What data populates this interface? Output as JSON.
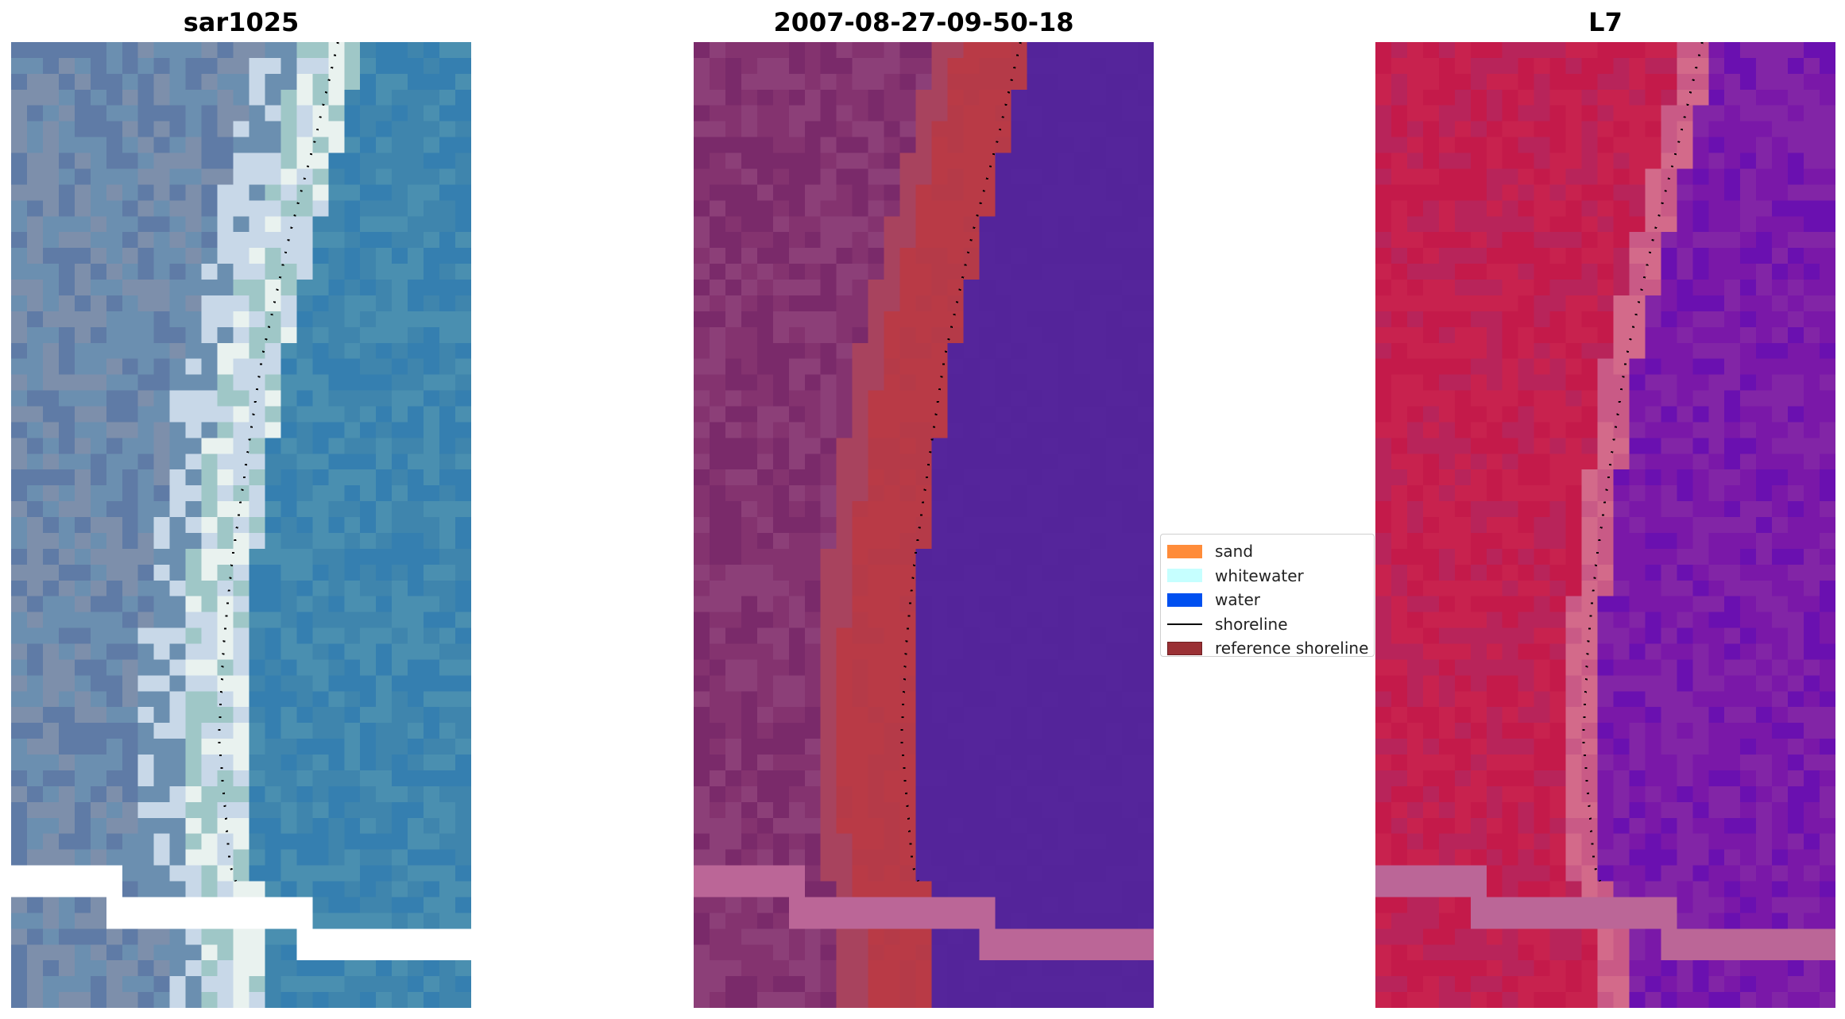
{
  "panels": [
    {
      "title": "sar1025",
      "palette": {
        "land_a": "#5f7ba6",
        "land_b": "#7d8fab",
        "land_c": "#6b8fb0",
        "surf_a": "#e9f2ef",
        "surf_b": "#c8d8e8",
        "surf_c": "#9fc7c7",
        "water_a": "#3f85ad",
        "water_b": "#357fb0",
        "water_c": "#4a8fb0",
        "nodata": "#ffffff"
      }
    },
    {
      "title": "2007-08-27-09-50-18",
      "palette": {
        "land_a": "#7a2a6a",
        "land_b": "#84336f",
        "land_c": "#8c3f78",
        "surf_a": "#b93a46",
        "surf_b": "#b53a48",
        "surf_c": "#a8435e",
        "water_a": "#54249a",
        "water_b": "#55259b",
        "water_c": "#5a2a9c",
        "nodata": "#bb6697"
      }
    },
    {
      "title": "L7",
      "palette": {
        "land_a": "#c41a4a",
        "land_b": "#c8224e",
        "land_c": "#b8245a",
        "surf_a": "#d36a8a",
        "surf_b": "#c95a86",
        "surf_c": "#a84c8f",
        "water_a": "#7a18a8",
        "water_b": "#8225a6",
        "water_c": "#6a10b0",
        "nodata": "#bb6697"
      }
    }
  ],
  "legend": {
    "items": [
      {
        "label": "sand",
        "color": "#ff8c3a",
        "kind": "patch"
      },
      {
        "label": "whitewater",
        "color": "#c6ffff",
        "kind": "patch"
      },
      {
        "label": "water",
        "color": "#0050f0",
        "kind": "patch"
      },
      {
        "label": "shoreline",
        "color": "#000000",
        "kind": "line"
      },
      {
        "label": "reference shoreline",
        "color": "#9a3034",
        "kind": "patch"
      }
    ]
  }
}
